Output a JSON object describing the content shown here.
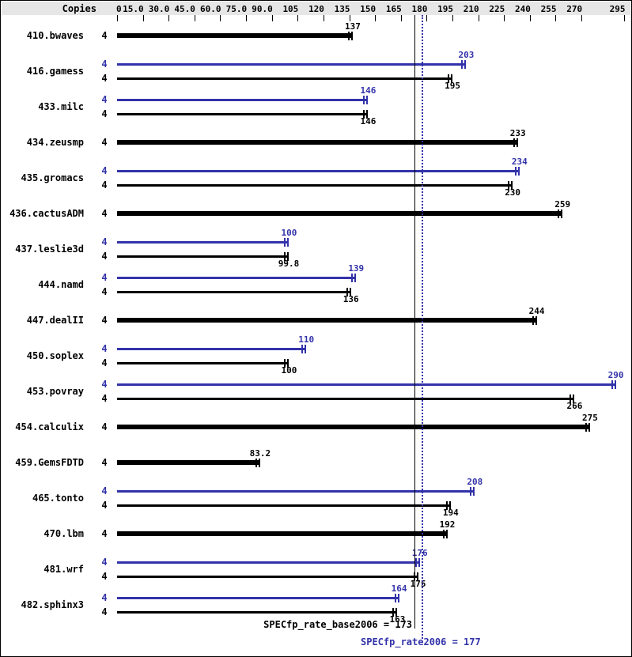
{
  "header": {
    "copies_label": "Copies"
  },
  "colors": {
    "peak_blue": "#3232aa",
    "base_black": "#000000",
    "axis_band_gray": "#e6e6e6",
    "background": "#ffffff"
  },
  "chart_data": {
    "type": "bar",
    "orientation": "horizontal",
    "title": "",
    "xlabel": "",
    "ylabel": "Copies",
    "xlim": [
      0,
      298
    ],
    "grid": false,
    "legend": "none",
    "x_ticks": [
      "0",
      "15.0",
      "30.0",
      "45.0",
      "60.0",
      "75.0",
      "90.0",
      "105",
      "120",
      "135",
      "150",
      "165",
      "180",
      "195",
      "210",
      "225",
      "240",
      "255",
      "270",
      "295"
    ],
    "benchmarks": [
      {
        "name": "410.bwaves",
        "copies": "4",
        "base": 137,
        "base_label": "137",
        "peak": null,
        "peak_label": null
      },
      {
        "name": "416.gamess",
        "copies": "4",
        "base": 195,
        "base_label": "195",
        "peak": 203,
        "peak_label": "203"
      },
      {
        "name": "433.milc",
        "copies": "4",
        "base": 146,
        "base_label": "146",
        "peak": 146,
        "peak_label": "146"
      },
      {
        "name": "434.zeusmp",
        "copies": "4",
        "base": 233,
        "base_label": "233",
        "peak": null,
        "peak_label": null
      },
      {
        "name": "435.gromacs",
        "copies": "4",
        "base": 230,
        "base_label": "230",
        "peak": 234,
        "peak_label": "234"
      },
      {
        "name": "436.cactusADM",
        "copies": "4",
        "base": 259,
        "base_label": "259",
        "peak": null,
        "peak_label": null
      },
      {
        "name": "437.leslie3d",
        "copies": "4",
        "base": 99.8,
        "base_label": "99.8",
        "peak": 100,
        "peak_label": "100"
      },
      {
        "name": "444.namd",
        "copies": "4",
        "base": 136,
        "base_label": "136",
        "peak": 139,
        "peak_label": "139"
      },
      {
        "name": "447.dealII",
        "copies": "4",
        "base": 244,
        "base_label": "244",
        "peak": null,
        "peak_label": null
      },
      {
        "name": "450.soplex",
        "copies": "4",
        "base": 100,
        "base_label": "100",
        "peak": 110,
        "peak_label": "110"
      },
      {
        "name": "453.povray",
        "copies": "4",
        "base": 266,
        "base_label": "266",
        "peak": 290,
        "peak_label": "290"
      },
      {
        "name": "454.calculix",
        "copies": "4",
        "base": 275,
        "base_label": "275",
        "peak": null,
        "peak_label": null
      },
      {
        "name": "459.GemsFDTD",
        "copies": "4",
        "base": 83.2,
        "base_label": "83.2",
        "peak": null,
        "peak_label": null
      },
      {
        "name": "465.tonto",
        "copies": "4",
        "base": 194,
        "base_label": "194",
        "peak": 208,
        "peak_label": "208"
      },
      {
        "name": "470.lbm",
        "copies": "4",
        "base": 192,
        "base_label": "192",
        "peak": null,
        "peak_label": null
      },
      {
        "name": "481.wrf",
        "copies": "4",
        "base": 175,
        "base_label": "175",
        "peak": 176,
        "peak_label": "176"
      },
      {
        "name": "482.sphinx3",
        "copies": "4",
        "base": 163,
        "base_label": "163",
        "peak": 164,
        "peak_label": "164"
      }
    ],
    "reference_lines": [
      {
        "name": "base",
        "value": 173,
        "style": "solid",
        "color": "#000000",
        "label": "SPECfp_rate_base2006 = 173"
      },
      {
        "name": "peak",
        "value": 177,
        "style": "dotted",
        "color": "#3232aa",
        "label": "SPECfp_rate2006 = 177"
      }
    ]
  }
}
